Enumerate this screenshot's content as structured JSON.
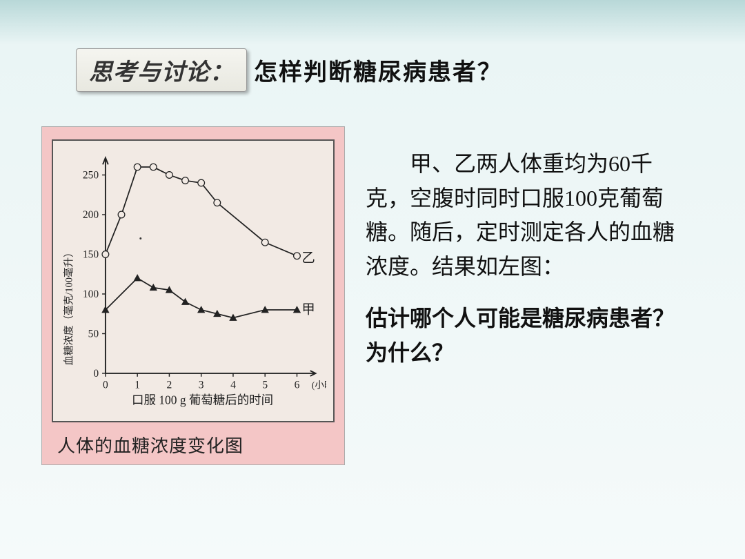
{
  "header": {
    "badge": "思考与讨论：",
    "question": "怎样判断糖尿病患者？"
  },
  "chart": {
    "type": "line",
    "background_color": "#f2eae4",
    "panel_color": "#f4c6c6",
    "border_color": "#555555",
    "axis_color": "#222222",
    "tick_color": "#222222",
    "text_color": "#222222",
    "y": {
      "label": "血糖浓度（毫克/100毫升）",
      "min": 0,
      "max": 270,
      "ticks": [
        0,
        50,
        100,
        150,
        200,
        250
      ],
      "fontsize": 16
    },
    "x": {
      "label": "口服 100 g 葡萄糖后的时间",
      "unit": "(小时)",
      "min": 0,
      "max": 6.5,
      "ticks": [
        0,
        1,
        2,
        3,
        4,
        5,
        6
      ],
      "fontsize": 16
    },
    "series": [
      {
        "name": "乙",
        "label_pos": {
          "x": 6.15,
          "y": 140
        },
        "marker": "circle",
        "marker_size": 5,
        "marker_fill": "#f2eae4",
        "marker_stroke": "#222222",
        "line_color": "#222222",
        "line_width": 1.8,
        "points": [
          {
            "x": 0,
            "y": 150
          },
          {
            "x": 0.5,
            "y": 200
          },
          {
            "x": 1,
            "y": 260
          },
          {
            "x": 1.5,
            "y": 260
          },
          {
            "x": 2,
            "y": 250
          },
          {
            "x": 2.5,
            "y": 243
          },
          {
            "x": 3,
            "y": 240
          },
          {
            "x": 3.5,
            "y": 215
          },
          {
            "x": 5,
            "y": 165
          },
          {
            "x": 6,
            "y": 148
          }
        ]
      },
      {
        "name": "甲",
        "label_pos": {
          "x": 6.15,
          "y": 75
        },
        "marker": "triangle",
        "marker_size": 5,
        "marker_fill": "#222222",
        "marker_stroke": "#222222",
        "line_color": "#222222",
        "line_width": 1.8,
        "points": [
          {
            "x": 0,
            "y": 80
          },
          {
            "x": 1,
            "y": 120
          },
          {
            "x": 1.5,
            "y": 108
          },
          {
            "x": 2,
            "y": 105
          },
          {
            "x": 2.5,
            "y": 90
          },
          {
            "x": 3,
            "y": 80
          },
          {
            "x": 3.5,
            "y": 75
          },
          {
            "x": 4,
            "y": 70
          },
          {
            "x": 5,
            "y": 80
          },
          {
            "x": 6,
            "y": 80
          }
        ]
      }
    ],
    "caption": "人体的血糖浓度变化图"
  },
  "body": {
    "para1": "甲、乙两人体重均为60千克，空腹时同时口服100克葡萄糖。随后，定时测定各人的血糖浓度。结果如左图：",
    "para2": "估计哪个人可能是糖尿病患者？为什么？"
  }
}
